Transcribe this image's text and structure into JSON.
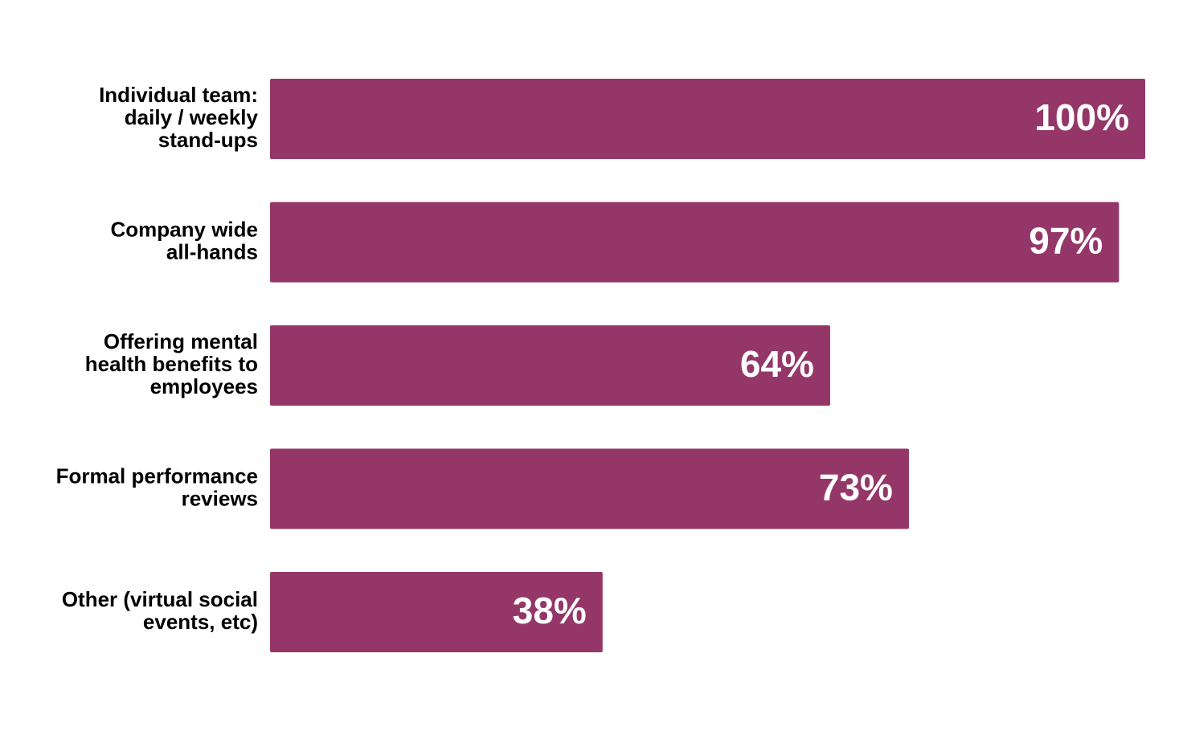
{
  "chart_data": {
    "type": "bar",
    "orientation": "horizontal",
    "categories": [
      [
        "Individual team:",
        "daily / weekly",
        "stand-ups"
      ],
      [
        "Company wide",
        "all-hands"
      ],
      [
        "Offering mental",
        "health benefits to",
        "employees"
      ],
      [
        "Formal performance",
        "reviews"
      ],
      [
        "Other (virtual social",
        "events, etc)"
      ]
    ],
    "values": [
      100,
      97,
      64,
      73,
      38
    ],
    "value_labels": [
      "100%",
      "97%",
      "64%",
      "73%",
      "38%"
    ],
    "color": "#943768",
    "xlim": [
      0,
      100
    ]
  }
}
